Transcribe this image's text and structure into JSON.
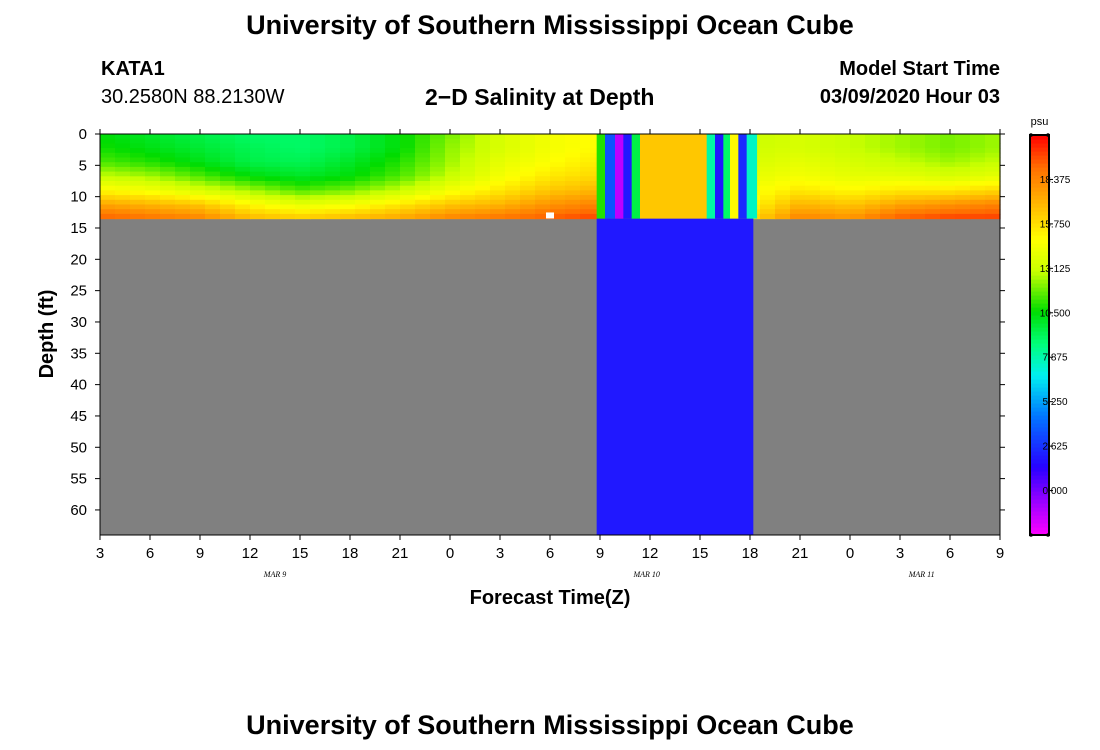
{
  "header": {
    "title": "University of Southern Mississippi Ocean Cube",
    "station_id": "KATA1",
    "coordinates": "30.2580N 88.2130W",
    "subtitle": "2−D Salinity at Depth",
    "model_start_label": "Model Start Time",
    "model_start_value": "03/09/2020 Hour 03"
  },
  "footer": {
    "title": "University of Southern Mississippi Ocean Cube"
  },
  "colors": {
    "no_data": "#808080",
    "frame": "#000000"
  },
  "chart_data": {
    "type": "heatmap",
    "title": "2−D Salinity at Depth",
    "xlabel": "Forecast Time(Z)",
    "ylabel": "Depth (ft)",
    "x_unit": "forecast hour since 03/09/2020 03Z",
    "xlim": [
      0,
      54
    ],
    "ylim": [
      0,
      64
    ],
    "y_inverted": true,
    "x_ticks": [
      0,
      3,
      6,
      9,
      12,
      15,
      18,
      21,
      24,
      27,
      30,
      33,
      36,
      39,
      42,
      45,
      48,
      51,
      54
    ],
    "x_tick_labels": [
      "3",
      "6",
      "9",
      "12",
      "15",
      "18",
      "21",
      "0",
      "3",
      "6",
      "9",
      "12",
      "15",
      "18",
      "21",
      "0",
      "3",
      "6",
      "9"
    ],
    "date_labels": [
      {
        "x": 10.5,
        "text": "MAR  9"
      },
      {
        "x": 32.8,
        "text": "MAR  10"
      },
      {
        "x": 49.3,
        "text": "MAR  11"
      }
    ],
    "y_ticks": [
      0,
      5,
      10,
      15,
      20,
      25,
      30,
      35,
      40,
      45,
      50,
      55,
      60
    ],
    "y_tick_labels": [
      "0",
      "5",
      "10",
      "15",
      "20",
      "25",
      "30",
      "35",
      "40",
      "45",
      "50",
      "55",
      "60"
    ],
    "water_depth_ft": 13.5,
    "colorbar": {
      "unit": "psu",
      "min": -2.625,
      "max": 21.0,
      "ticks": [
        0.0,
        2.625,
        5.25,
        7.875,
        10.5,
        13.125,
        15.75,
        18.375
      ],
      "tick_labels": [
        "0.000",
        "2.625",
        "5.250",
        "7.875",
        "10.500",
        "13.125",
        "15.750",
        "18.375"
      ]
    },
    "times": [
      0,
      3,
      6,
      9,
      12,
      15,
      18,
      21,
      24,
      27,
      30,
      33,
      36,
      39,
      42,
      45,
      48,
      51,
      54
    ],
    "depth_levels_ft": [
      0,
      2.25,
      4.5,
      6.75,
      9,
      11.25,
      13.5
    ],
    "salinity_profiles": [
      [
        10.5,
        10.8,
        11.5,
        13.0,
        15.0,
        17.5,
        19.5
      ],
      [
        10.0,
        10.3,
        11.0,
        12.5,
        14.5,
        17.0,
        19.0
      ],
      [
        9.5,
        9.8,
        10.3,
        11.5,
        13.5,
        16.5,
        18.5
      ],
      [
        9.0,
        9.3,
        9.5,
        10.5,
        12.5,
        15.0,
        17.0
      ],
      [
        9.0,
        9.0,
        9.3,
        10.0,
        11.5,
        14.0,
        16.5
      ],
      [
        9.5,
        9.5,
        10.0,
        10.5,
        12.0,
        14.5,
        17.0
      ],
      [
        10.5,
        10.5,
        11.0,
        11.5,
        13.0,
        15.5,
        17.5
      ],
      [
        12.0,
        12.3,
        12.5,
        13.0,
        14.5,
        16.5,
        18.5
      ],
      [
        13.5,
        13.5,
        14.0,
        14.5,
        15.5,
        17.0,
        19.0
      ],
      [
        14.5,
        14.5,
        14.8,
        15.5,
        16.5,
        18.0,
        19.5
      ],
      [
        15.0,
        15.0,
        15.5,
        16.0,
        17.0,
        18.5,
        20.0
      ],
      [
        14.0,
        14.0,
        14.5,
        15.0,
        15.5,
        16.5,
        17.0
      ],
      [
        15.5,
        15.5,
        15.5,
        16.0,
        16.0,
        16.5,
        16.5
      ],
      [
        13.0,
        13.2,
        13.5,
        14.0,
        14.5,
        15.0,
        16.0
      ],
      [
        13.5,
        13.5,
        14.0,
        14.5,
        15.5,
        17.0,
        18.5
      ],
      [
        13.0,
        13.0,
        13.5,
        14.0,
        15.0,
        16.5,
        18.0
      ],
      [
        12.5,
        12.5,
        13.0,
        14.0,
        15.5,
        17.5,
        19.5
      ],
      [
        12.0,
        12.0,
        12.5,
        13.5,
        15.5,
        18.0,
        20.0
      ],
      [
        12.5,
        12.5,
        13.0,
        14.0,
        16.0,
        18.5,
        20.0
      ]
    ],
    "anomaly_columns": [
      {
        "x_start": 29.8,
        "x_end": 30.3,
        "salinity": 11.0
      },
      {
        "x_start": 30.3,
        "x_end": 30.9,
        "salinity": 3.5
      },
      {
        "x_start": 30.9,
        "x_end": 31.4,
        "salinity": -1.3
      },
      {
        "x_start": 31.4,
        "x_end": 31.9,
        "salinity": 2.0
      },
      {
        "x_start": 31.9,
        "x_end": 32.4,
        "salinity": 9.5
      },
      {
        "x_start": 32.4,
        "x_end": 36.4,
        "salinity": 16.5
      },
      {
        "x_start": 36.4,
        "x_end": 36.9,
        "salinity": 8.0
      },
      {
        "x_start": 36.9,
        "x_end": 37.4,
        "salinity": 2.0
      },
      {
        "x_start": 37.4,
        "x_end": 37.8,
        "salinity": 9.0
      },
      {
        "x_start": 37.8,
        "x_end": 38.3,
        "salinity": 15.0
      },
      {
        "x_start": 38.3,
        "x_end": 38.8,
        "salinity": 2.5
      },
      {
        "x_start": 38.8,
        "x_end": 39.4,
        "salinity": 7.5
      }
    ],
    "deep_region": {
      "x_start": 29.8,
      "x_end": 39.2,
      "depth_from": 13.5,
      "depth_to": 64,
      "salinity": 2.0
    },
    "marker": {
      "x": 27.0,
      "depth": 13.0
    }
  }
}
